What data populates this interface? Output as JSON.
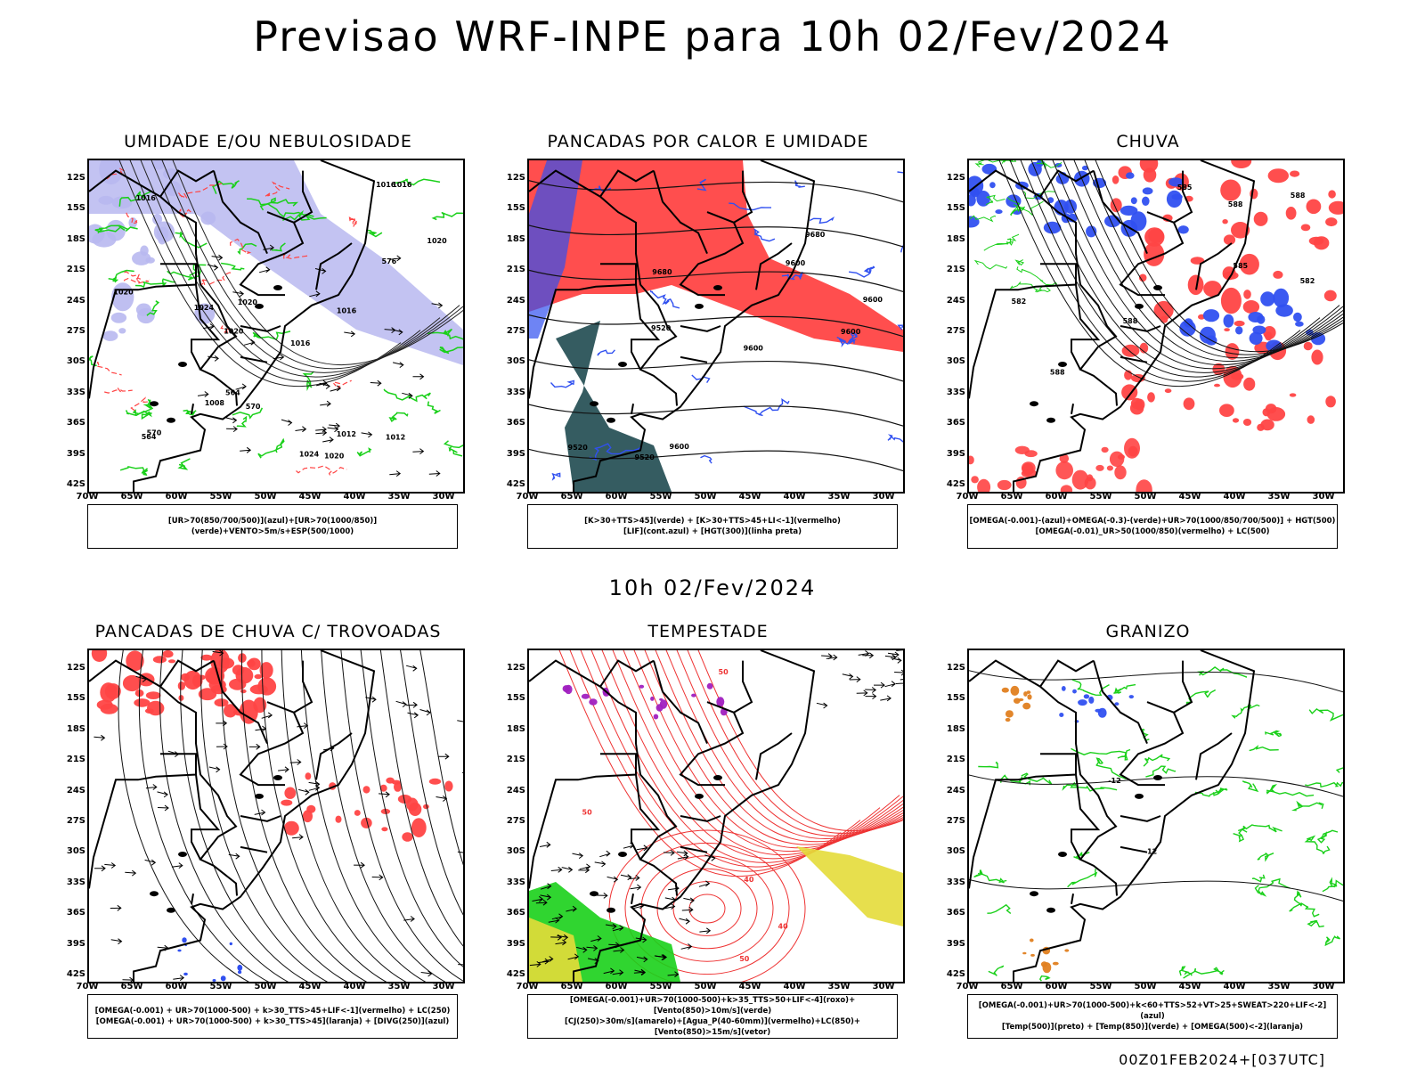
{
  "title": "Previsao WRF-INPE  para 10h 02/Fev/2024",
  "mid_label": "10h 02/Fev/2024",
  "footer": "00Z01FEB2024+[037UTC]",
  "axes": {
    "lat_labels": [
      "12S",
      "15S",
      "18S",
      "21S",
      "24S",
      "27S",
      "30S",
      "33S",
      "36S",
      "39S",
      "42S"
    ],
    "lon_labels": [
      "70W",
      "65W",
      "60W",
      "55W",
      "50W",
      "45W",
      "40W",
      "35W",
      "30W"
    ]
  },
  "colors": {
    "red": "#f44",
    "blue": "#3050f0",
    "green": "#1ad01a",
    "lavender": "#b8b8f0",
    "teal": "#1f4a50",
    "yellow": "#e4dc3a",
    "purple": "#a020c0",
    "orange": "#e08020"
  },
  "panels": [
    {
      "id": "p1",
      "title": "UMIDADE E/OU NEBULOSIDADE",
      "legend": [
        "[UR>70(850/700/500)](azul)+[UR>70(1000/850)](verde)+VENTO>5m/s+ESP(500/1000)"
      ],
      "labels": [
        "1016",
        "1016",
        "1020",
        "1012",
        "1016",
        "1020",
        "1020",
        "1020",
        "1016",
        "1024",
        "1020",
        "1008",
        "1012",
        "1016",
        "1024",
        "570",
        "576",
        "564",
        "564",
        "570"
      ]
    },
    {
      "id": "p2",
      "title": "PANCADAS POR CALOR E UMIDADE",
      "legend": [
        "[K>30+TTS>45](verde) + [K>30+TTS>45+LI<-1](vermelho)",
        "[LIF](cont.azul) + [HGT(300)](linha preta)"
      ],
      "labels": [
        "9680",
        "9600",
        "9600",
        "9680",
        "9600",
        "9600",
        "9520",
        "9600",
        "9520",
        "9520"
      ]
    },
    {
      "id": "p3",
      "title": "CHUVA",
      "legend": [
        "[OMEGA(-0.001)-(azul)+OMEGA(-0.3)-(verde)+UR>70(1000/850/700/500)] + HGT(500)",
        "[OMEGA(-0.01)_UR>50(1000/850)(vermelho) + LC(500)"
      ],
      "labels": [
        "588",
        "588",
        "588",
        "585",
        "582",
        "585",
        "582",
        "588"
      ]
    },
    {
      "id": "p4",
      "title": "PANCADAS DE CHUVA C/ TROVOADAS",
      "legend": [
        "[OMEGA(-0.001) + UR>70(1000-500) + k>30_TTS>45+LIF<-1](vermelho) + LC(250)",
        "[OMEGA(-0.001) + UR>70(1000-500) + k>30_TTS>45](laranja) + [DIVG(250)](azul)"
      ],
      "labels": []
    },
    {
      "id": "p5",
      "title": "TEMPESTADE",
      "legend": [
        "[OMEGA(-0.001)+UR>70(1000-500)+k>35_TTS>50+LIF<-4](roxo)+[Vento(850)>10m/s](verde)",
        "[CJ(250)>30m/s](amarelo)+[Agua_P(40-60mm)](vermelho)+LC(850)+[Vento(850)>15m/s](vetor)"
      ],
      "labels": [
        "40",
        "40",
        "50",
        "50",
        "50"
      ]
    },
    {
      "id": "p6",
      "title": "GRANIZO",
      "legend": [
        "[OMEGA(-0.001)+UR>70(1000-500)+k<60+TTS>52+VT>25+SWEAT>220+LIF<-2](azul)",
        "[Temp(500)](preto) + [Temp(850)](verde) + [OMEGA(500)<-2](laranja)"
      ],
      "labels": [
        "-12",
        "-12"
      ]
    }
  ]
}
